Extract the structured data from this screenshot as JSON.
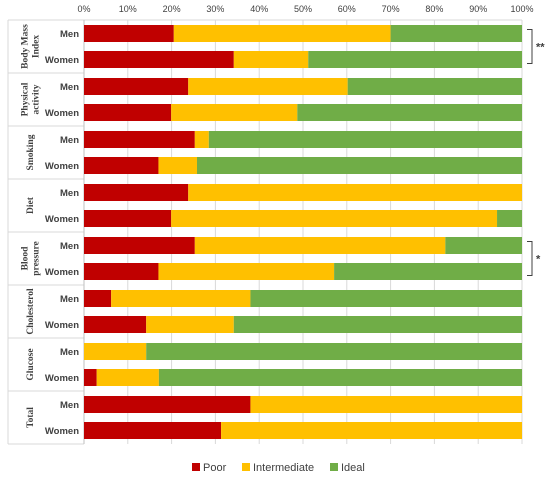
{
  "chart_data": {
    "type": "bar",
    "orientation": "horizontal",
    "stacked": "percent",
    "x_ticks": [
      "0%",
      "10%",
      "20%",
      "30%",
      "40%",
      "50%",
      "60%",
      "70%",
      "80%",
      "90%",
      "100%"
    ],
    "xlim": [
      0,
      100
    ],
    "grid": true,
    "legend_position": "bottom",
    "groups": [
      {
        "name": "Body Mass Index",
        "lines": [
          "Body Mass",
          "Index"
        ],
        "significance": "**"
      },
      {
        "name": "Physical activity",
        "lines": [
          "Physical",
          "activity"
        ],
        "significance": ""
      },
      {
        "name": "Smoking",
        "lines": [
          "Smoking"
        ],
        "significance": ""
      },
      {
        "name": "Diet",
        "lines": [
          "Diet"
        ],
        "significance": ""
      },
      {
        "name": "Blood pressure",
        "lines": [
          "Blood",
          "pressure"
        ],
        "significance": "*"
      },
      {
        "name": "Cholesterol",
        "lines": [
          "Cholesterol"
        ],
        "significance": ""
      },
      {
        "name": "Glucose",
        "lines": [
          "Glucose"
        ],
        "significance": ""
      },
      {
        "name": "Total",
        "lines": [
          "Total"
        ],
        "significance": ""
      }
    ],
    "sex_labels": [
      "Men",
      "Women"
    ],
    "series": [
      {
        "name": "Poor",
        "color": "#c00000",
        "values": [
          20.5,
          34.2,
          23.8,
          19.9,
          25.3,
          17.0,
          23.8,
          19.9,
          25.3,
          17.0,
          6.2,
          14.2,
          0,
          2.9,
          38.0,
          31.3
        ]
      },
      {
        "name": "Intermediate",
        "color": "#ffc000",
        "values": [
          49.5,
          17.0,
          36.4,
          28.8,
          3.2,
          8.8,
          76.2,
          74.4,
          57.2,
          40.1,
          31.8,
          20.0,
          14.2,
          14.2,
          62.0,
          68.7
        ]
      },
      {
        "name": "Ideal",
        "color": "#70ad47",
        "values": [
          30.0,
          48.8,
          39.8,
          51.3,
          71.5,
          74.2,
          0,
          5.7,
          17.5,
          42.9,
          62.0,
          65.8,
          85.8,
          82.9,
          0,
          0
        ]
      }
    ]
  }
}
